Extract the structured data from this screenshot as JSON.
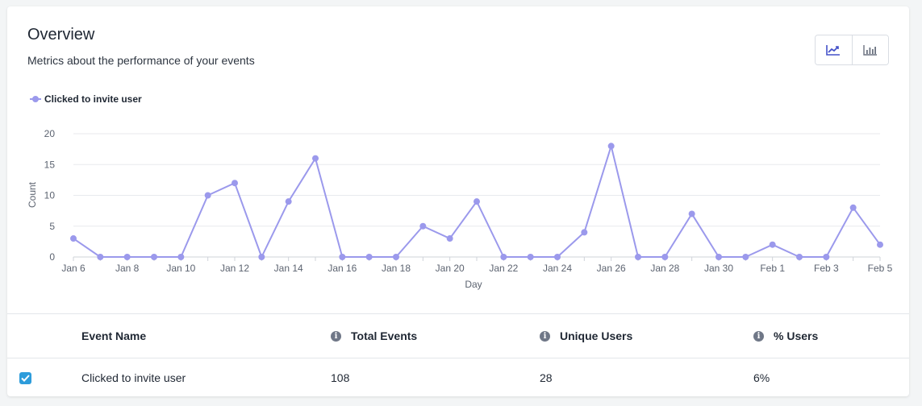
{
  "header": {
    "title": "Overview",
    "subtitle": "Metrics about the performance of your events"
  },
  "view_toggle": {
    "line_icon": "line-chart-icon",
    "bar_icon": "bar-chart-icon"
  },
  "colors": {
    "series": "#9b99ec",
    "checkbox": "#2d9cdb",
    "grid": "#e8eaee"
  },
  "chart_data": {
    "type": "line",
    "legend": [
      "Clicked to invite user"
    ],
    "legend_placement": "top-left",
    "xlabel": "Day",
    "ylabel": "Count",
    "ylim": [
      0,
      20
    ],
    "yticks": [
      0,
      5,
      10,
      15,
      20
    ],
    "grid": true,
    "x": [
      "Jan 6",
      "Jan 7",
      "Jan 8",
      "Jan 9",
      "Jan 10",
      "Jan 11",
      "Jan 12",
      "Jan 13",
      "Jan 14",
      "Jan 15",
      "Jan 16",
      "Jan 17",
      "Jan 18",
      "Jan 19",
      "Jan 20",
      "Jan 21",
      "Jan 22",
      "Jan 23",
      "Jan 24",
      "Jan 25",
      "Jan 26",
      "Jan 27",
      "Jan 28",
      "Jan 29",
      "Jan 30",
      "Jan 31",
      "Feb 1",
      "Feb 2",
      "Feb 3",
      "Feb 4",
      "Feb 5"
    ],
    "xtick_labels": [
      "Jan 6",
      "",
      "Jan 8",
      "",
      "Jan 10",
      "",
      "Jan 12",
      "",
      "Jan 14",
      "",
      "Jan 16",
      "",
      "Jan 18",
      "",
      "Jan 20",
      "",
      "Jan 22",
      "",
      "Jan 24",
      "",
      "Jan 26",
      "",
      "Jan 28",
      "",
      "Jan 30",
      "",
      "Feb 1",
      "",
      "Feb 3",
      "",
      "Feb 5"
    ],
    "series": [
      {
        "name": "Clicked to invite user",
        "values": [
          3,
          0,
          0,
          0,
          0,
          10,
          12,
          0,
          9,
          16,
          0,
          0,
          0,
          5,
          3,
          9,
          0,
          0,
          0,
          4,
          18,
          0,
          0,
          7,
          0,
          0,
          2,
          0,
          0,
          8,
          2
        ]
      }
    ]
  },
  "table": {
    "columns": [
      "Event Name",
      "Total Events",
      "Unique Users",
      "% Users"
    ],
    "info_glyph": "i",
    "rows": [
      {
        "checked": true,
        "event_name": "Clicked to invite user",
        "total_events": "108",
        "unique_users": "28",
        "pct_users": "6%"
      }
    ]
  }
}
